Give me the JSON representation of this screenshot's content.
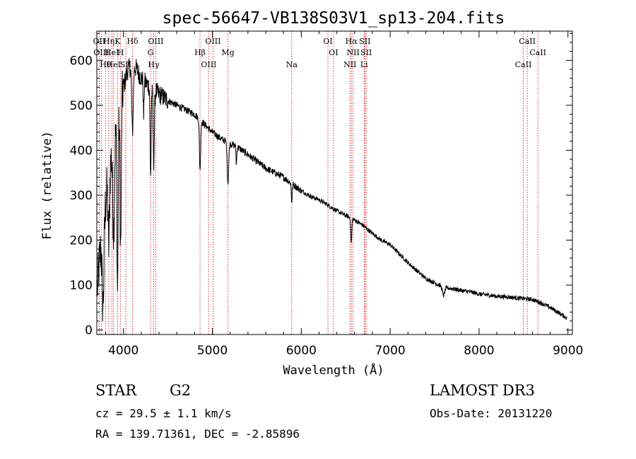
{
  "chart_data": {
    "type": "line",
    "title": "spec-56647-VB138S03V1_sp13-204.fits",
    "xlabel": "Wavelength (Å)",
    "ylabel": "Flux (relative)",
    "xlim": [
      3700,
      9050
    ],
    "ylim": [
      -10,
      665
    ],
    "x_ticks": [
      4000,
      5000,
      6000,
      7000,
      8000,
      9000
    ],
    "y_ticks": [
      0,
      100,
      200,
      300,
      400,
      500,
      600
    ],
    "grid": false,
    "line_color": "#000000",
    "marker_color": "#cc0000",
    "spectrum_envelope": {
      "x": [
        3700,
        3750,
        3800,
        3850,
        3900,
        3950,
        4000,
        4050,
        4100,
        4150,
        4200,
        4300,
        4400,
        4500,
        4600,
        4700,
        4800,
        4900,
        5000,
        5100,
        5200,
        5300,
        5400,
        5500,
        5600,
        5700,
        5800,
        5900,
        6000,
        6100,
        6200,
        6300,
        6400,
        6500,
        6600,
        6700,
        6800,
        6900,
        7000,
        7100,
        7200,
        7300,
        7400,
        7500,
        7600,
        7700,
        7800,
        7900,
        8000,
        8100,
        8200,
        8300,
        8400,
        8500,
        8600,
        8700,
        8800,
        8900,
        9000
      ],
      "y": [
        80,
        200,
        290,
        370,
        440,
        490,
        540,
        580,
        590,
        580,
        560,
        540,
        525,
        510,
        500,
        490,
        480,
        460,
        440,
        425,
        415,
        405,
        390,
        375,
        360,
        350,
        340,
        325,
        310,
        298,
        290,
        278,
        265,
        255,
        245,
        232,
        215,
        200,
        190,
        170,
        150,
        132,
        115,
        105,
        95,
        92,
        88,
        85,
        80,
        78,
        75,
        74,
        72,
        70,
        68,
        60,
        50,
        38,
        25
      ]
    },
    "spectrum_features": [
      {
        "center": 3770,
        "width": 15,
        "depth": 180
      },
      {
        "center": 3835,
        "width": 12,
        "depth": 160
      },
      {
        "center": 3889,
        "width": 14,
        "depth": 200
      },
      {
        "center": 3933,
        "width": 10,
        "depth": 380
      },
      {
        "center": 3968,
        "width": 10,
        "depth": 330
      },
      {
        "center": 4101,
        "width": 12,
        "depth": 150
      },
      {
        "center": 4227,
        "width": 6,
        "depth": 80
      },
      {
        "center": 4305,
        "width": 8,
        "depth": 200
      },
      {
        "center": 4340,
        "width": 10,
        "depth": 160
      },
      {
        "center": 4861,
        "width": 10,
        "depth": 110
      },
      {
        "center": 5175,
        "width": 12,
        "depth": 90
      },
      {
        "center": 5270,
        "width": 6,
        "depth": 40
      },
      {
        "center": 5893,
        "width": 8,
        "depth": 40
      },
      {
        "center": 6563,
        "width": 8,
        "depth": 55
      },
      {
        "center": 7600,
        "width": 18,
        "depth": 18
      }
    ],
    "line_markers": [
      {
        "x": 3727,
        "label": "OII"
      },
      {
        "x": 3750,
        "label": "OIII"
      },
      {
        "x": 3798,
        "label": "Hθ"
      },
      {
        "x": 3835,
        "label": "Hη"
      },
      {
        "x": 3869,
        "label": "HeI"
      },
      {
        "x": 3889,
        "label": "HeI"
      },
      {
        "x": 3933,
        "label": "K"
      },
      {
        "x": 3968,
        "label": "H"
      },
      {
        "x": 4026,
        "label": "SII"
      },
      {
        "x": 4102,
        "label": "Hδ"
      },
      {
        "x": 4305,
        "label": "G"
      },
      {
        "x": 4340,
        "label": "Hγ"
      },
      {
        "x": 4363,
        "label": "OIII"
      },
      {
        "x": 4861,
        "label": "Hβ"
      },
      {
        "x": 4959,
        "label": "OIII"
      },
      {
        "x": 5007,
        "label": "OIII"
      },
      {
        "x": 5175,
        "label": "Mg"
      },
      {
        "x": 5893,
        "label": "Na"
      },
      {
        "x": 6300,
        "label": "OI"
      },
      {
        "x": 6363,
        "label": "OI"
      },
      {
        "x": 6548,
        "label": "NII"
      },
      {
        "x": 6563,
        "label": "Hα"
      },
      {
        "x": 6583,
        "label": "NII"
      },
      {
        "x": 6707,
        "label": "Li"
      },
      {
        "x": 6716,
        "label": "SII"
      },
      {
        "x": 6731,
        "label": "SII"
      },
      {
        "x": 8498,
        "label": "CaII"
      },
      {
        "x": 8542,
        "label": "CaII"
      },
      {
        "x": 8662,
        "label": "CaII"
      }
    ]
  },
  "info": {
    "object_class": "STAR",
    "subclass": "G2",
    "survey": "LAMOST DR3",
    "cz": "cz = 29.5 ± 1.1 km/s",
    "obs_date": "Obs-Date: 20131220",
    "coords": "RA = 139.71361, DEC =  -2.85896"
  }
}
